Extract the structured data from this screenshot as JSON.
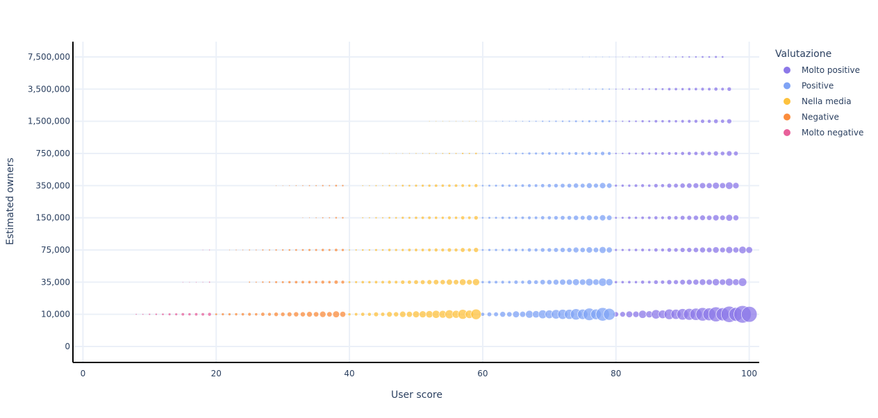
{
  "chart_data": {
    "type": "scatter",
    "xlabel": "User score",
    "ylabel": "Estimated owners",
    "xlim": [
      -1.5,
      101.5
    ],
    "x_ticks": [
      0,
      20,
      40,
      60,
      80,
      100
    ],
    "y_categories": [
      "0",
      "10,000",
      "35,000",
      "75,000",
      "150,000",
      "350,000",
      "750,000",
      "1,500,000",
      "3,500,000",
      "7,500,000"
    ],
    "grid": true,
    "legend": {
      "title": "Valutazione",
      "position": "right"
    },
    "series": [
      {
        "name": "Molto positive",
        "color": "#8c78e8",
        "x_range": [
          80,
          100
        ],
        "rows": [
          {
            "y": "10,000",
            "start": 80,
            "end": 100,
            "max_size": 13
          },
          {
            "y": "35,000",
            "start": 80,
            "end": 99,
            "max_size": 6
          },
          {
            "y": "75,000",
            "start": 80,
            "end": 100,
            "max_size": 5.5
          },
          {
            "y": "150,000",
            "start": 80,
            "end": 98,
            "max_size": 5
          },
          {
            "y": "350,000",
            "start": 80,
            "end": 98,
            "max_size": 5.5
          },
          {
            "y": "750,000",
            "start": 80,
            "end": 98,
            "max_size": 4
          },
          {
            "y": "1,500,000",
            "start": 80,
            "end": 97,
            "max_size": 3.5
          },
          {
            "y": "3,500,000",
            "start": 80,
            "end": 97,
            "max_size": 3
          },
          {
            "y": "7,500,000",
            "start": 80,
            "end": 96,
            "max_size": 1.6
          }
        ]
      },
      {
        "name": "Positive",
        "color": "#7fa3f5",
        "x_range": [
          60,
          79
        ],
        "rows": [
          {
            "y": "10,000",
            "start": 60,
            "end": 79,
            "max_size": 10
          },
          {
            "y": "35,000",
            "start": 60,
            "end": 79,
            "max_size": 6
          },
          {
            "y": "75,000",
            "start": 60,
            "end": 79,
            "max_size": 5
          },
          {
            "y": "150,000",
            "start": 60,
            "end": 79,
            "max_size": 4.5
          },
          {
            "y": "350,000",
            "start": 60,
            "end": 79,
            "max_size": 4.5
          },
          {
            "y": "750,000",
            "start": 60,
            "end": 79,
            "max_size": 3
          },
          {
            "y": "1,500,000",
            "start": 62,
            "end": 79,
            "max_size": 1.8
          },
          {
            "y": "3,500,000",
            "start": 70,
            "end": 79,
            "max_size": 1.2
          },
          {
            "y": "7,500,000",
            "start": 75,
            "end": 79,
            "max_size": 0.6
          }
        ]
      },
      {
        "name": "Nella media",
        "color": "#fdc23e",
        "x_range": [
          40,
          59
        ],
        "rows": [
          {
            "y": "10,000",
            "start": 40,
            "end": 59,
            "max_size": 7.5
          },
          {
            "y": "35,000",
            "start": 40,
            "end": 59,
            "max_size": 5
          },
          {
            "y": "75,000",
            "start": 40,
            "end": 59,
            "max_size": 3.5
          },
          {
            "y": "150,000",
            "start": 42,
            "end": 59,
            "max_size": 3
          },
          {
            "y": "350,000",
            "start": 42,
            "end": 59,
            "max_size": 2.6
          },
          {
            "y": "750,000",
            "start": 45,
            "end": 59,
            "max_size": 1.3
          },
          {
            "y": "1,500,000",
            "start": 52,
            "end": 59,
            "max_size": 0.7
          }
        ]
      },
      {
        "name": "Negative",
        "color": "#fb8c3c",
        "x_range": [
          20,
          39
        ],
        "rows": [
          {
            "y": "10,000",
            "start": 20,
            "end": 39,
            "max_size": 5
          },
          {
            "y": "35,000",
            "start": 25,
            "end": 39,
            "max_size": 3
          },
          {
            "y": "75,000",
            "start": 22,
            "end": 39,
            "max_size": 2
          },
          {
            "y": "150,000",
            "start": 33,
            "end": 39,
            "max_size": 1.4
          },
          {
            "y": "350,000",
            "start": 29,
            "end": 39,
            "max_size": 1.4
          }
        ]
      },
      {
        "name": "Molto negative",
        "color": "#e8609a",
        "x_range": [
          8,
          19
        ],
        "rows": [
          {
            "y": "10,000",
            "start": 8,
            "end": 19,
            "max_size": 2.6
          },
          {
            "y": "35,000",
            "start": 15,
            "end": 19,
            "max_size": 0.8
          },
          {
            "y": "75,000",
            "start": 18,
            "end": 19,
            "max_size": 0.6
          }
        ]
      }
    ]
  }
}
